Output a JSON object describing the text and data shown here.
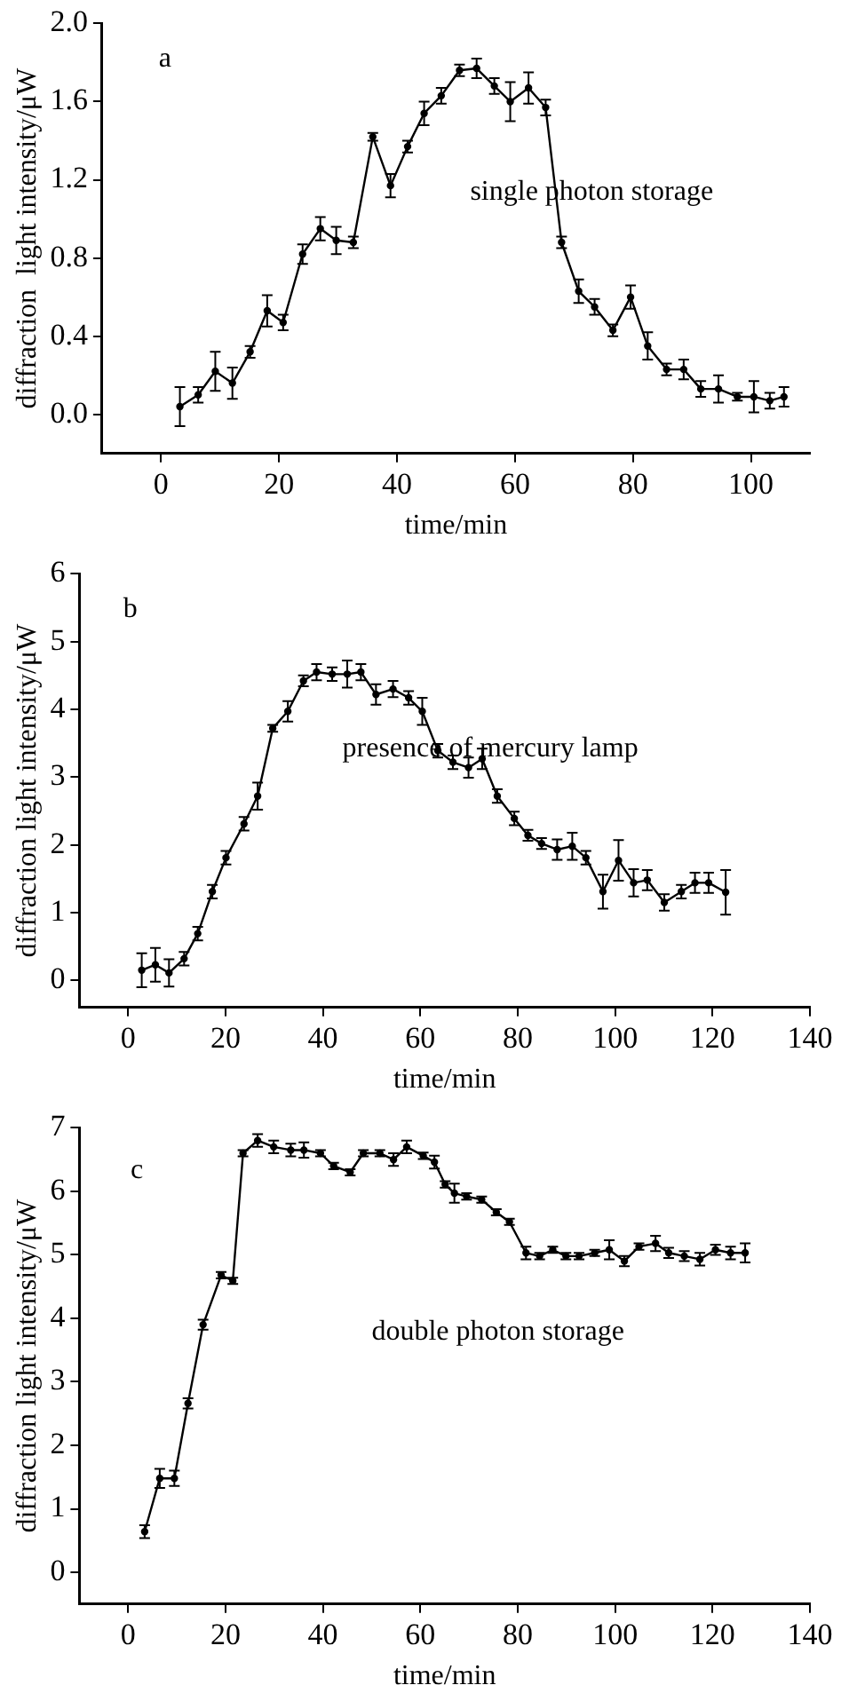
{
  "chart_data": [
    {
      "type": "line",
      "xlabel": "time/min",
      "ylabel": "diffraction  light intensity/μW",
      "annotations": [
        "a",
        "single photon storage"
      ],
      "marker": "circle",
      "xlim": [
        -10,
        110
      ],
      "xticks": [
        0,
        20,
        40,
        60,
        80,
        100
      ],
      "ylim": [
        -0.2,
        2.0
      ],
      "yticks": [
        {
          "value": 0,
          "label": "0.0"
        },
        {
          "value": 0.4,
          "label": "0.4"
        },
        {
          "value": 0.8,
          "label": "0.8"
        },
        {
          "value": 1.2,
          "label": "1.2"
        },
        {
          "value": 1.6,
          "label": "1.6"
        },
        {
          "value": 2,
          "label": "2.0"
        }
      ],
      "series": [
        {
          "color": "#000000",
          "x": [
            3.2,
            6.3,
            9.2,
            12.1,
            15.1,
            18,
            20.7,
            24,
            27,
            29.7,
            32.6,
            35.9,
            38.9,
            41.8,
            44.6,
            47.5,
            50.6,
            53.5,
            56.5,
            59.2,
            62.3,
            65.2,
            67.9,
            70.8,
            73.5,
            76.6,
            79.6,
            82.5,
            85.7,
            88.6,
            91.5,
            94.5,
            97.7,
            100.5,
            103.2,
            105.6
          ],
          "values": [
            0.04,
            0.1,
            0.22,
            0.16,
            0.32,
            0.53,
            0.47,
            0.82,
            0.95,
            0.89,
            0.88,
            1.42,
            1.17,
            1.37,
            1.54,
            1.63,
            1.76,
            1.77,
            1.68,
            1.6,
            1.67,
            1.57,
            0.88,
            0.63,
            0.55,
            0.43,
            0.6,
            0.35,
            0.23,
            0.23,
            0.13,
            0.13,
            0.09,
            0.09,
            0.07,
            0.09
          ],
          "errors": [
            0.1,
            0.04,
            0.1,
            0.08,
            0.03,
            0.08,
            0.04,
            0.05,
            0.06,
            0.07,
            0.03,
            0.02,
            0.06,
            0.03,
            0.06,
            0.04,
            0.03,
            0.05,
            0.04,
            0.1,
            0.08,
            0.04,
            0.03,
            0.06,
            0.04,
            0.03,
            0.06,
            0.07,
            0.03,
            0.05,
            0.04,
            0.07,
            0.02,
            0.08,
            0.04,
            0.05
          ]
        }
      ]
    },
    {
      "type": "line",
      "xlabel": "time/min",
      "ylabel": "diffraction light intensity/μW",
      "annotations": [
        "b",
        "presence of mercury lamp"
      ],
      "marker": "circle",
      "xlim": [
        -10,
        140
      ],
      "xticks": [
        0,
        20,
        40,
        60,
        80,
        100,
        120,
        140
      ],
      "ylim": [
        -0.4,
        6
      ],
      "yticks": [
        0,
        1,
        2,
        3,
        4,
        5,
        6
      ],
      "series": [
        {
          "color": "#000000",
          "x": [
            2.8,
            5.6,
            8.4,
            11.5,
            14.3,
            17.3,
            20.1,
            23.8,
            26.6,
            29.7,
            32.8,
            36,
            38.7,
            41.9,
            45,
            47.8,
            50.9,
            54.4,
            57.6,
            60.4,
            63.6,
            66.7,
            69.9,
            72.7,
            75.8,
            79.3,
            82.1,
            84.9,
            88.1,
            91.2,
            94,
            97.5,
            100.7,
            103.8,
            106.6,
            110.1,
            113.6,
            116.4,
            119.2,
            122.7
          ],
          "values": [
            0.15,
            0.23,
            0.11,
            0.32,
            0.69,
            1.31,
            1.81,
            2.31,
            2.72,
            3.72,
            3.97,
            4.42,
            4.55,
            4.52,
            4.52,
            4.55,
            4.22,
            4.3,
            4.17,
            3.97,
            3.39,
            3.22,
            3.14,
            3.27,
            2.72,
            2.39,
            2.14,
            2.02,
            1.93,
            1.98,
            1.81,
            1.31,
            1.77,
            1.44,
            1.48,
            1.15,
            1.31,
            1.44,
            1.44,
            1.3
          ],
          "errors": [
            0.25,
            0.25,
            0.2,
            0.1,
            0.1,
            0.1,
            0.1,
            0.1,
            0.2,
            0.05,
            0.15,
            0.08,
            0.12,
            0.1,
            0.2,
            0.12,
            0.15,
            0.12,
            0.1,
            0.2,
            0.1,
            0.1,
            0.15,
            0.15,
            0.1,
            0.1,
            0.08,
            0.08,
            0.15,
            0.2,
            0.1,
            0.25,
            0.3,
            0.2,
            0.15,
            0.12,
            0.1,
            0.15,
            0.15,
            0.33
          ]
        }
      ]
    },
    {
      "type": "line",
      "xlabel": "time/min",
      "ylabel": "diffraction light intensity/μW",
      "annotations": [
        "c",
        "double photon storage"
      ],
      "marker": "circle",
      "xlim": [
        -10,
        140
      ],
      "xticks": [
        0,
        20,
        40,
        60,
        80,
        100,
        120,
        140
      ],
      "ylim": [
        -0.5,
        7
      ],
      "yticks": [
        0,
        1,
        2,
        3,
        4,
        5,
        6,
        7
      ],
      "series": [
        {
          "color": "#000000",
          "x": [
            3.4,
            6.5,
            9.5,
            12.3,
            15.4,
            19.1,
            21.5,
            23.6,
            26.6,
            29.9,
            33.4,
            36.1,
            39.5,
            42.2,
            45.6,
            48.3,
            51.7,
            54.5,
            57.2,
            60.6,
            62.9,
            65.1,
            67,
            69.5,
            72.6,
            75.6,
            78.3,
            81.7,
            84.5,
            87.2,
            89.9,
            92.6,
            95.8,
            98.8,
            101.9,
            104.9,
            108.3,
            111,
            114.2,
            117.4,
            120.6,
            123.7,
            126.7
          ],
          "values": [
            0.64,
            1.48,
            1.48,
            2.66,
            3.9,
            4.68,
            4.59,
            6.6,
            6.8,
            6.7,
            6.65,
            6.65,
            6.6,
            6.4,
            6.3,
            6.6,
            6.6,
            6.5,
            6.7,
            6.56,
            6.46,
            6.11,
            5.97,
            5.92,
            5.87,
            5.67,
            5.52,
            5.03,
            4.98,
            5.08,
            4.98,
            4.98,
            5.03,
            5.08,
            4.9,
            5.13,
            5.18,
            5.03,
            4.98,
            4.93,
            5.08,
            5.03,
            5.03
          ],
          "errors": [
            0.1,
            0.15,
            0.12,
            0.08,
            0.08,
            0.05,
            0.05,
            0.05,
            0.1,
            0.1,
            0.1,
            0.12,
            0.05,
            0.05,
            0.05,
            0.05,
            0.05,
            0.1,
            0.1,
            0.05,
            0.1,
            0.05,
            0.15,
            0.05,
            0.05,
            0.05,
            0.05,
            0.1,
            0.05,
            0.05,
            0.05,
            0.05,
            0.05,
            0.15,
            0.08,
            0.05,
            0.12,
            0.08,
            0.08,
            0.1,
            0.08,
            0.1,
            0.15
          ]
        }
      ]
    }
  ]
}
